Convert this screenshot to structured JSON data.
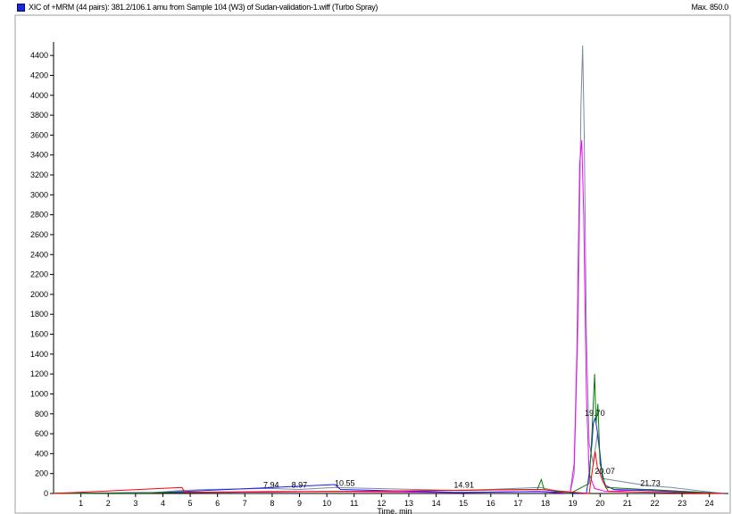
{
  "header": {
    "title": "XIC of +MRM (44 pairs): 381.2/106.1 amu from Sample 104 (W3) of Sudan-validation-1.wiff (Turbo Spray)",
    "max_label": "Max. 850.0"
  },
  "chart_data": {
    "type": "line",
    "title": "XIC of +MRM (44 pairs): 381.2/106.1 amu from Sample 104 (W3) of Sudan-validation-1.wiff (Turbo Spray)",
    "xlabel": "Time, min",
    "ylabel": "",
    "xlim": [
      0,
      24.5
    ],
    "ylim": [
      0,
      4500
    ],
    "x_ticks": [
      1,
      2,
      3,
      4,
      5,
      6,
      7,
      8,
      9,
      10,
      11,
      12,
      13,
      14,
      15,
      16,
      17,
      18,
      19,
      20,
      21,
      22,
      23,
      24
    ],
    "y_ticks": [
      0,
      200,
      400,
      600,
      800,
      1000,
      1200,
      1400,
      1600,
      1800,
      2000,
      2200,
      2400,
      2600,
      2800,
      3000,
      3200,
      3400,
      3600,
      3800,
      4000,
      4200,
      4400
    ],
    "grid": false,
    "peak_labels": [
      {
        "x": 7.94,
        "y": 40,
        "text": "7.94"
      },
      {
        "x": 8.97,
        "y": 40,
        "text": "8.97"
      },
      {
        "x": 10.55,
        "y": 60,
        "text": "10.55"
      },
      {
        "x": 14.91,
        "y": 40,
        "text": "14.91"
      },
      {
        "x": 19.7,
        "y": 760,
        "text": "19.70"
      },
      {
        "x": 20.07,
        "y": 180,
        "text": "20.07"
      },
      {
        "x": 21.73,
        "y": 60,
        "text": "21.73"
      }
    ],
    "series": [
      {
        "color": "#7a8aa0",
        "points": [
          [
            0,
            5
          ],
          [
            3.5,
            5
          ],
          [
            4.6,
            30
          ],
          [
            5.6,
            40
          ],
          [
            7.9,
            50
          ],
          [
            9.0,
            40
          ],
          [
            10.3,
            60
          ],
          [
            14.9,
            30
          ],
          [
            17.8,
            60
          ],
          [
            18.9,
            0
          ],
          [
            19.05,
            200
          ],
          [
            19.2,
            1800
          ],
          [
            19.3,
            3900
          ],
          [
            19.36,
            4500
          ],
          [
            19.42,
            3600
          ],
          [
            19.5,
            1600
          ],
          [
            19.6,
            500
          ],
          [
            19.75,
            300
          ],
          [
            19.9,
            600
          ],
          [
            20.1,
            150
          ],
          [
            21.7,
            80
          ],
          [
            22.6,
            60
          ],
          [
            24.5,
            0
          ]
        ]
      },
      {
        "color": "#ff00ff",
        "points": [
          [
            0,
            0
          ],
          [
            4.6,
            10
          ],
          [
            7.9,
            20
          ],
          [
            10.2,
            20
          ],
          [
            14.9,
            10
          ],
          [
            17.7,
            20
          ],
          [
            18.9,
            0
          ],
          [
            19.05,
            300
          ],
          [
            19.15,
            1400
          ],
          [
            19.25,
            3300
          ],
          [
            19.33,
            3550
          ],
          [
            19.4,
            2800
          ],
          [
            19.5,
            1000
          ],
          [
            19.6,
            200
          ],
          [
            19.8,
            50
          ],
          [
            20.2,
            20
          ],
          [
            21.8,
            40
          ],
          [
            24.5,
            0
          ]
        ]
      },
      {
        "color": "#1a1aff",
        "points": [
          [
            0,
            0
          ],
          [
            4.0,
            10
          ],
          [
            10.3,
            90
          ],
          [
            10.5,
            40
          ],
          [
            14.9,
            10
          ],
          [
            17.8,
            20
          ],
          [
            19.5,
            0
          ],
          [
            19.6,
            200
          ],
          [
            19.7,
            500
          ],
          [
            19.75,
            700
          ],
          [
            19.82,
            760
          ],
          [
            19.9,
            620
          ],
          [
            20.0,
            400
          ],
          [
            20.07,
            180
          ],
          [
            20.2,
            80
          ],
          [
            20.5,
            40
          ],
          [
            21.7,
            30
          ],
          [
            22.6,
            20
          ],
          [
            24.5,
            0
          ]
        ]
      },
      {
        "color": "#008000",
        "points": [
          [
            0,
            0
          ],
          [
            4.6,
            10
          ],
          [
            10.3,
            20
          ],
          [
            17.7,
            40
          ],
          [
            17.85,
            140
          ],
          [
            17.95,
            40
          ],
          [
            18.9,
            0
          ],
          [
            19.6,
            100
          ],
          [
            19.7,
            600
          ],
          [
            19.8,
            1200
          ],
          [
            19.85,
            700
          ],
          [
            19.92,
            900
          ],
          [
            20.0,
            300
          ],
          [
            20.2,
            60
          ],
          [
            24.5,
            0
          ]
        ]
      },
      {
        "color": "#ff0000",
        "points": [
          [
            0,
            0
          ],
          [
            4.7,
            60
          ],
          [
            4.8,
            10
          ],
          [
            10.3,
            20
          ],
          [
            17.8,
            40
          ],
          [
            19.6,
            0
          ],
          [
            19.75,
            300
          ],
          [
            19.82,
            420
          ],
          [
            19.9,
            260
          ],
          [
            20.0,
            200
          ],
          [
            20.1,
            120
          ],
          [
            20.3,
            20
          ],
          [
            24.5,
            0
          ]
        ]
      }
    ]
  }
}
